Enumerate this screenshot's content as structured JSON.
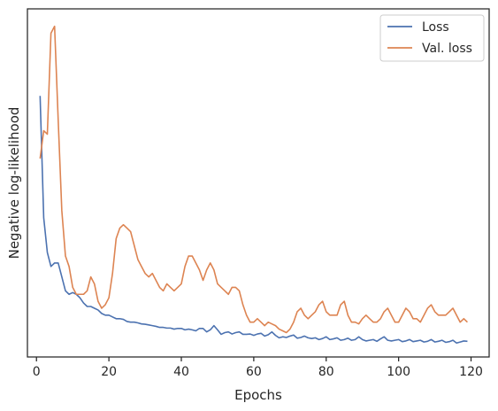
{
  "chart_data": {
    "type": "line",
    "xlabel": "Epochs",
    "ylabel": "Negative log-likelihood",
    "xlim": [
      -2.5,
      125
    ],
    "ylim": [
      0,
      1
    ],
    "x_ticks": [
      "0",
      "20",
      "40",
      "60",
      "80",
      "100",
      "120"
    ],
    "x_tick_values": [
      0,
      20,
      40,
      60,
      80,
      100,
      120
    ],
    "y_ticks_labeled": false,
    "grid": false,
    "legend_position": "top-right",
    "colors": {
      "Loss": "#4c72b0",
      "Val. loss": "#dd8452"
    },
    "series": [
      {
        "name": "Loss",
        "x": [
          1,
          2,
          3,
          4,
          5,
          6,
          7,
          8,
          9,
          10,
          11,
          12,
          13,
          14,
          15,
          16,
          17,
          18,
          19,
          20,
          21,
          22,
          23,
          24,
          25,
          26,
          27,
          28,
          29,
          30,
          31,
          32,
          33,
          34,
          35,
          36,
          37,
          38,
          39,
          40,
          41,
          42,
          43,
          44,
          45,
          46,
          47,
          48,
          49,
          50,
          51,
          52,
          53,
          54,
          55,
          56,
          57,
          58,
          59,
          60,
          61,
          62,
          63,
          64,
          65,
          66,
          67,
          68,
          69,
          70,
          71,
          72,
          73,
          74,
          75,
          76,
          77,
          78,
          79,
          80,
          81,
          82,
          83,
          84,
          85,
          86,
          87,
          88,
          89,
          90,
          91,
          92,
          93,
          94,
          95,
          96,
          97,
          98,
          99,
          100,
          101,
          102,
          103,
          104,
          105,
          106,
          107,
          108,
          109,
          110,
          111,
          112,
          113,
          114,
          115,
          116,
          117,
          118,
          119
        ],
        "values": [
          0.75,
          0.4,
          0.3,
          0.26,
          0.27,
          0.27,
          0.23,
          0.19,
          0.18,
          0.185,
          0.18,
          0.17,
          0.155,
          0.145,
          0.145,
          0.14,
          0.135,
          0.125,
          0.12,
          0.12,
          0.115,
          0.11,
          0.11,
          0.108,
          0.102,
          0.1,
          0.1,
          0.098,
          0.095,
          0.094,
          0.092,
          0.09,
          0.088,
          0.085,
          0.085,
          0.083,
          0.083,
          0.08,
          0.082,
          0.082,
          0.078,
          0.08,
          0.078,
          0.075,
          0.082,
          0.082,
          0.072,
          0.078,
          0.09,
          0.078,
          0.065,
          0.07,
          0.072,
          0.066,
          0.07,
          0.072,
          0.065,
          0.065,
          0.066,
          0.062,
          0.066,
          0.068,
          0.06,
          0.064,
          0.072,
          0.062,
          0.055,
          0.058,
          0.056,
          0.06,
          0.063,
          0.054,
          0.056,
          0.06,
          0.055,
          0.053,
          0.055,
          0.05,
          0.053,
          0.058,
          0.05,
          0.052,
          0.055,
          0.048,
          0.05,
          0.054,
          0.048,
          0.05,
          0.058,
          0.05,
          0.046,
          0.048,
          0.05,
          0.045,
          0.052,
          0.058,
          0.048,
          0.046,
          0.048,
          0.05,
          0.044,
          0.046,
          0.05,
          0.044,
          0.046,
          0.048,
          0.043,
          0.045,
          0.05,
          0.043,
          0.045,
          0.048,
          0.042,
          0.044,
          0.048,
          0.04,
          0.043,
          0.046,
          0.045
        ]
      },
      {
        "name": "Val. loss",
        "x": [
          1,
          2,
          3,
          4,
          5,
          6,
          7,
          8,
          9,
          10,
          11,
          12,
          13,
          14,
          15,
          16,
          17,
          18,
          19,
          20,
          21,
          22,
          23,
          24,
          25,
          26,
          27,
          28,
          29,
          30,
          31,
          32,
          33,
          34,
          35,
          36,
          37,
          38,
          39,
          40,
          41,
          42,
          43,
          44,
          45,
          46,
          47,
          48,
          49,
          50,
          51,
          52,
          53,
          54,
          55,
          56,
          57,
          58,
          59,
          60,
          61,
          62,
          63,
          64,
          65,
          66,
          67,
          68,
          69,
          70,
          71,
          72,
          73,
          74,
          75,
          76,
          77,
          78,
          79,
          80,
          81,
          82,
          83,
          84,
          85,
          86,
          87,
          88,
          89,
          90,
          91,
          92,
          93,
          94,
          95,
          96,
          97,
          98,
          99,
          100,
          101,
          102,
          103,
          104,
          105,
          106,
          107,
          108,
          109,
          110,
          111,
          112,
          113,
          114,
          115,
          116,
          117,
          118,
          119
        ],
        "values": [
          0.57,
          0.65,
          0.64,
          0.93,
          0.95,
          0.68,
          0.42,
          0.29,
          0.26,
          0.2,
          0.18,
          0.18,
          0.18,
          0.19,
          0.23,
          0.21,
          0.16,
          0.14,
          0.15,
          0.17,
          0.24,
          0.34,
          0.37,
          0.38,
          0.37,
          0.36,
          0.32,
          0.28,
          0.26,
          0.24,
          0.23,
          0.24,
          0.22,
          0.2,
          0.19,
          0.21,
          0.2,
          0.19,
          0.2,
          0.21,
          0.26,
          0.29,
          0.29,
          0.27,
          0.25,
          0.22,
          0.25,
          0.27,
          0.25,
          0.21,
          0.2,
          0.19,
          0.18,
          0.2,
          0.2,
          0.19,
          0.15,
          0.12,
          0.1,
          0.1,
          0.11,
          0.1,
          0.09,
          0.1,
          0.095,
          0.09,
          0.08,
          0.075,
          0.07,
          0.08,
          0.1,
          0.13,
          0.14,
          0.12,
          0.11,
          0.12,
          0.13,
          0.15,
          0.16,
          0.13,
          0.12,
          0.12,
          0.12,
          0.15,
          0.16,
          0.12,
          0.1,
          0.1,
          0.095,
          0.11,
          0.12,
          0.11,
          0.1,
          0.1,
          0.11,
          0.13,
          0.14,
          0.12,
          0.1,
          0.1,
          0.12,
          0.14,
          0.13,
          0.11,
          0.11,
          0.1,
          0.12,
          0.14,
          0.15,
          0.13,
          0.12,
          0.12,
          0.12,
          0.13,
          0.14,
          0.12,
          0.1,
          0.11,
          0.1
        ]
      }
    ]
  }
}
